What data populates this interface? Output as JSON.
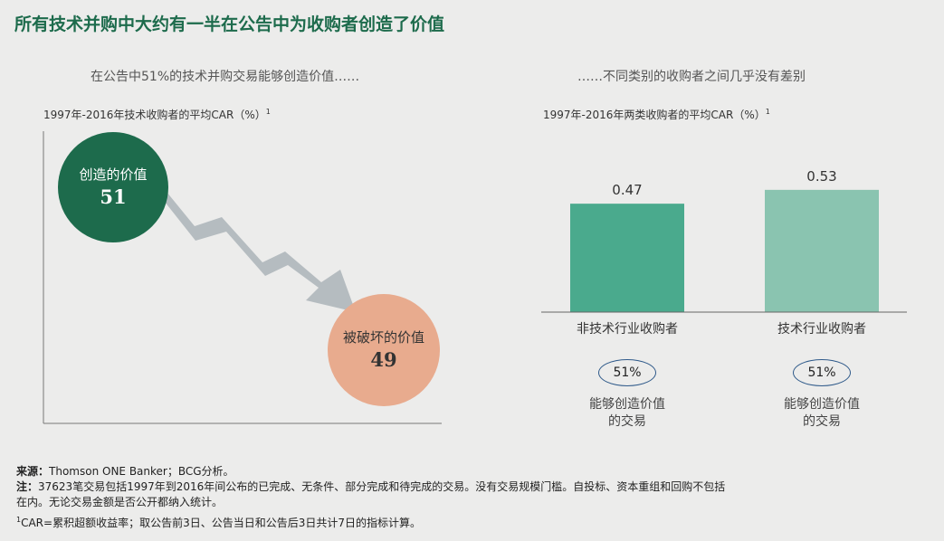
{
  "title": "所有技术并购中大约有一半在公告中为收购者创造了价值",
  "left_panel": {
    "subtitle": "在公告中51%的技术并购交易能够创造价值……",
    "axis_title": "1997年-2016年技术收购者的平均CAR（%）",
    "axis_sup": "1",
    "created": {
      "label": "创造的价值",
      "value": "51"
    },
    "destroyed": {
      "label": "被破坏的价值",
      "value": "49"
    }
  },
  "right_panel": {
    "subtitle": "……不同类别的收购者之间几乎没有差别",
    "axis_title": "1997年-2016年两类收购者的平均CAR（%）",
    "axis_sup": "1",
    "pct_desc_line1": "能够创造价值",
    "pct_desc_line2": "的交易"
  },
  "chart_data": {
    "type": "bar",
    "categories": [
      "非技术行业收购者",
      "技术行业收购者"
    ],
    "values": [
      0.47,
      0.53
    ],
    "value_labels": [
      "0.47",
      "0.53"
    ],
    "value_created_share": [
      "51%",
      "51%"
    ],
    "colors": [
      "#4aaa8d",
      "#8ac4b0"
    ]
  },
  "footnotes": {
    "source_label": "来源：",
    "source_text": "Thomson ONE Banker；BCG分析。",
    "note_label": "注：",
    "note_line1": "37623笔交易包括1997年到2016年间公布的已完成、无条件、部分完成和待完成的交易。没有交易规模门槛。自投标、资本重组和回购不包括",
    "note_line2": "在内。无论交易金额是否公开都纳入统计。",
    "car_sup": "1",
    "car_text": "CAR=累积超额收益率；取公告前3日、公告当日和公告后3日共计7日的指标计算。"
  }
}
